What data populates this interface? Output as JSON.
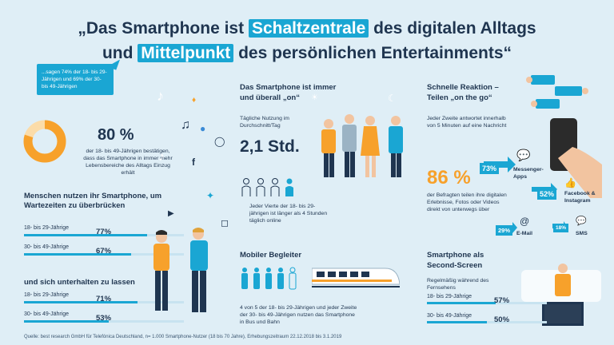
{
  "title": {
    "line1_pre": "„Das Smartphone ist",
    "line1_hl": "Schaltzentrale",
    "line1_post": "des digitalen Alltags",
    "line2_pre": "und",
    "line2_hl": "Mittelpunkt",
    "line2_post": "des persönlichen Entertainments“"
  },
  "callout": {
    "text": "...sagen 74% der 18- bis 29-Jährigen und 69% der 30- bis 49-Jährigen"
  },
  "donut": {
    "value_label": "80 %",
    "value": 80,
    "desc": "der 18- bis 49-Jährigen bestätigen, dass das Smartphone in immer mehr Lebensbereiche des Alltags Einzug erhält",
    "color": "#f7a12b",
    "track_color": "#fbdca9"
  },
  "wait": {
    "heading": "Menschen nutzen ihr Smartphone, um Wartezeiten zu überbrücken",
    "rows": [
      {
        "label": "18- bis 29-Jährige",
        "value_label": "77%",
        "value": 77
      },
      {
        "label": "30- bis 49-Jährige",
        "value_label": "67%",
        "value": 67
      }
    ]
  },
  "entertain": {
    "heading": "und sich unterhalten zu lassen",
    "rows": [
      {
        "label": "18- bis 29-Jährige",
        "value_label": "71%",
        "value": 71
      },
      {
        "label": "30- bis 49-Jährige",
        "value_label": "53%",
        "value": 53
      }
    ]
  },
  "always": {
    "heading_line1": "Das Smartphone ist immer",
    "heading_line2": "und überall „on“",
    "usage_label": "Tägliche Nutzung im Durchschnitt/Tag",
    "usage_value": "2,1 Std.",
    "quarter_text": "Jeder Vierte der 18- bis 29-jährigen ist länger als 4 Stunden täglich online"
  },
  "mobile": {
    "heading": "Mobiler Begleiter",
    "text": "4 von 5 der 18- bis 29-Jährigen und jeder Zweite der 30- bis 49-Jährigen nutzen das Smartphone in Bus und Bahn"
  },
  "reaction": {
    "heading_line1": "Schnelle Reaktion –",
    "heading_line2": "Teilen „on the go“",
    "text": "Jeder Zweite antwortet innerhalb von 5 Minuten auf eine Nachricht",
    "share_value": "86 %",
    "share_text": "der Befragten teilen ihre digitalen Erlebnisse, Fotos oder Videos direkt von unterwegs über",
    "channels": [
      {
        "pct": "73%",
        "label": "Messenger-Apps"
      },
      {
        "pct": "52%",
        "label": "Facebook & Instagram"
      },
      {
        "pct": "29%",
        "label": "E-Mail"
      },
      {
        "pct": "18%",
        "label": "SMS"
      }
    ]
  },
  "second": {
    "heading_line1": "Smartphone als",
    "heading_line2": "Second-Screen",
    "sub": "Regelmäßig während des Fernsehens",
    "rows": [
      {
        "label": "18- bis 29-Jährige",
        "value_label": "57%",
        "value": 57
      },
      {
        "label": "30- bis 49-Jährige",
        "value_label": "50%",
        "value": 50
      }
    ]
  },
  "source": "Quelle: best research GmbH für Telefónica Deutschland, n= 1.000 Smartphone-Nutzer (18 bis 70 Jahre), Erhebungszeitraum 22.12.2018 bis 3.1.2019"
}
